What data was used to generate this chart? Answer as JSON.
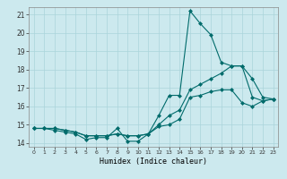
{
  "title": "",
  "xlabel": "Humidex (Indice chaleur)",
  "background_color": "#cce9ee",
  "grid_color": "#aad4da",
  "line_color": "#006b6b",
  "xlim": [
    -0.5,
    23.5
  ],
  "ylim": [
    13.8,
    21.4
  ],
  "yticks": [
    14,
    15,
    16,
    17,
    18,
    19,
    20,
    21
  ],
  "xticks": [
    0,
    1,
    2,
    3,
    4,
    5,
    6,
    7,
    8,
    9,
    10,
    11,
    12,
    13,
    14,
    15,
    16,
    17,
    18,
    19,
    20,
    21,
    22,
    23
  ],
  "series": [
    [
      14.8,
      14.8,
      14.7,
      14.6,
      14.5,
      14.2,
      14.3,
      14.3,
      14.8,
      14.1,
      14.1,
      14.5,
      15.5,
      16.6,
      16.6,
      21.2,
      20.5,
      19.9,
      18.4,
      18.2,
      18.2,
      17.5,
      16.5,
      16.4
    ],
    [
      14.8,
      14.8,
      14.8,
      14.7,
      14.6,
      14.4,
      14.4,
      14.4,
      14.5,
      14.4,
      14.4,
      14.5,
      15.0,
      15.5,
      15.8,
      16.9,
      17.2,
      17.5,
      17.8,
      18.2,
      18.2,
      16.5,
      16.3,
      16.4
    ],
    [
      14.8,
      14.8,
      14.8,
      14.7,
      14.6,
      14.4,
      14.4,
      14.4,
      14.5,
      14.4,
      14.4,
      14.5,
      14.9,
      15.0,
      15.3,
      16.5,
      16.6,
      16.8,
      16.9,
      16.9,
      16.2,
      16.0,
      16.3,
      16.4
    ]
  ]
}
